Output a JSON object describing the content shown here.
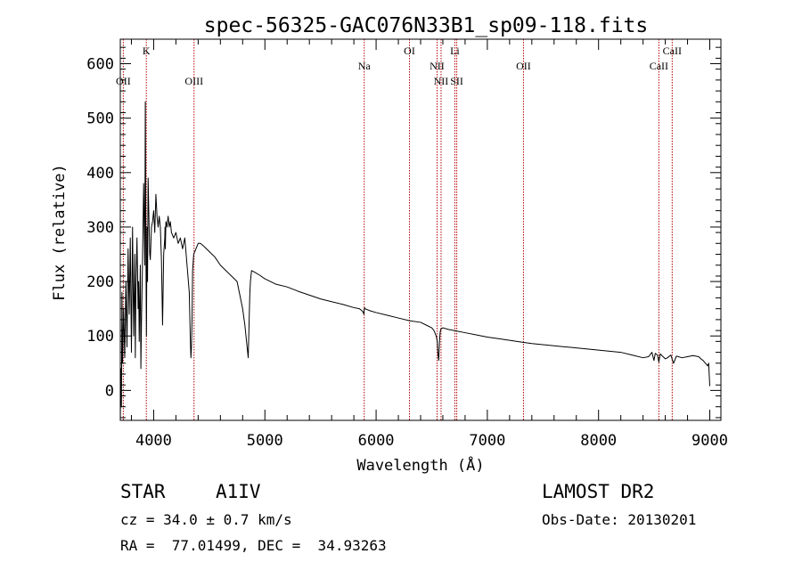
{
  "chart_data": {
    "type": "line",
    "title": "spec-56325-GAC076N33B1_sp09-118.fits",
    "xlabel": "Wavelength (Å)",
    "ylabel": "Flux (relative)",
    "xlim": [
      3700,
      9100
    ],
    "ylim": [
      -55,
      645
    ],
    "xticks": [
      4000,
      5000,
      6000,
      7000,
      8000,
      9000
    ],
    "yticks": [
      0,
      100,
      200,
      300,
      400,
      500,
      600
    ],
    "grid": false,
    "series": [
      {
        "x": [
          3700,
          3705,
          3710,
          3715,
          3720,
          3730,
          3740,
          3750,
          3760,
          3770,
          3780,
          3790,
          3800,
          3810,
          3820,
          3830,
          3835,
          3840,
          3850,
          3860,
          3865,
          3870,
          3880,
          3885,
          3890,
          3900,
          3910,
          3920,
          3925,
          3930,
          3935,
          3940,
          3945,
          3950,
          3960,
          3965,
          3970,
          3975,
          3980,
          3990,
          4000,
          4010,
          4020,
          4030,
          4040,
          4050,
          4060,
          4070,
          4080,
          4090,
          4100,
          4102,
          4105,
          4110,
          4120,
          4130,
          4140,
          4150,
          4160,
          4180,
          4200,
          4220,
          4240,
          4260,
          4280,
          4300,
          4320,
          4330,
          4335,
          4340,
          4345,
          4350,
          4360,
          4380,
          4400,
          4420,
          4450,
          4500,
          4550,
          4600,
          4650,
          4700,
          4750,
          4800,
          4820,
          4840,
          4850,
          4855,
          4861,
          4865,
          4870,
          4875,
          4880,
          4900,
          4950,
          5000,
          5100,
          5200,
          5300,
          5400,
          5500,
          5600,
          5700,
          5800,
          5850,
          5880,
          5890,
          5893,
          5896,
          5900,
          5950,
          6000,
          6100,
          6200,
          6300,
          6400,
          6450,
          6500,
          6520,
          6540,
          6550,
          6555,
          6560,
          6563,
          6566,
          6570,
          6575,
          6580,
          6600,
          6650,
          6700,
          6800,
          6900,
          7000,
          7100,
          7200,
          7300,
          7400,
          7500,
          7600,
          7700,
          7800,
          7900,
          8000,
          8100,
          8200,
          8300,
          8400,
          8450,
          8480,
          8498,
          8510,
          8530,
          8542,
          8555,
          8580,
          8600,
          8620,
          8650,
          8662,
          8675,
          8700,
          8750,
          8800,
          8850,
          8900,
          8920,
          8940,
          8960,
          8970,
          8980,
          8990,
          9000
        ],
        "values": [
          -55,
          40,
          -30,
          180,
          50,
          150,
          60,
          200,
          80,
          260,
          140,
          280,
          70,
          300,
          100,
          250,
          60,
          180,
          280,
          150,
          200,
          90,
          230,
          40,
          120,
          240,
          380,
          230,
          530,
          260,
          100,
          300,
          200,
          390,
          290,
          250,
          240,
          270,
          300,
          310,
          330,
          290,
          360,
          320,
          300,
          320,
          300,
          240,
          120,
          250,
          280,
          300,
          260,
          310,
          300,
          320,
          300,
          310,
          290,
          280,
          290,
          270,
          280,
          260,
          280,
          230,
          180,
          90,
          60,
          80,
          130,
          220,
          250,
          260,
          270,
          270,
          265,
          255,
          245,
          230,
          220,
          210,
          200,
          150,
          120,
          80,
          60,
          100,
          150,
          180,
          200,
          210,
          220,
          218,
          212,
          205,
          195,
          190,
          182,
          175,
          168,
          163,
          158,
          152,
          150,
          145,
          140,
          148,
          152,
          150,
          146,
          143,
          138,
          133,
          128,
          125,
          120,
          115,
          110,
          100,
          90,
          70,
          60,
          55,
          70,
          90,
          105,
          112,
          115,
          112,
          110,
          106,
          102,
          98,
          95,
          92,
          89,
          86,
          84,
          82,
          80,
          78,
          76,
          74,
          72,
          70,
          65,
          60,
          62,
          70,
          55,
          68,
          65,
          52,
          67,
          62,
          58,
          60,
          65,
          57,
          50,
          63,
          60,
          62,
          64,
          62,
          58,
          55,
          50,
          48,
          45,
          50,
          8
        ]
      }
    ],
    "line_markers": [
      {
        "label": "OII",
        "x": 3727,
        "row": 3
      },
      {
        "label": "K",
        "x": 3934,
        "row": 1
      },
      {
        "label": "OIII",
        "x": 4363,
        "row": 3
      },
      {
        "label": "Na",
        "x": 5893,
        "row": 2
      },
      {
        "label": "OI",
        "x": 6300,
        "row": 1
      },
      {
        "label": "NII",
        "x": 6548,
        "row": 2
      },
      {
        "label": "NII",
        "x": 6584,
        "row": 3
      },
      {
        "label": "Li",
        "x": 6708,
        "row": 1
      },
      {
        "label": "SII",
        "x": 6725,
        "row": 3
      },
      {
        "label": "OII",
        "x": 7325,
        "row": 2
      },
      {
        "label": "CaII",
        "x": 8542,
        "row": 2
      },
      {
        "label": "CaII",
        "x": 8662,
        "row": 1
      }
    ]
  },
  "info": {
    "obj_class": "STAR",
    "subclass": "A1IV",
    "survey": "LAMOST DR2",
    "cz": "cz = 34.0 ± 0.7 km/s",
    "obs_date": "Obs-Date: 20130201",
    "coords": "RA =  77.01499, DEC =  34.93263"
  },
  "colors": {
    "spectrum": "#000000",
    "marker_line": "#b00000",
    "axes": "#000000"
  }
}
